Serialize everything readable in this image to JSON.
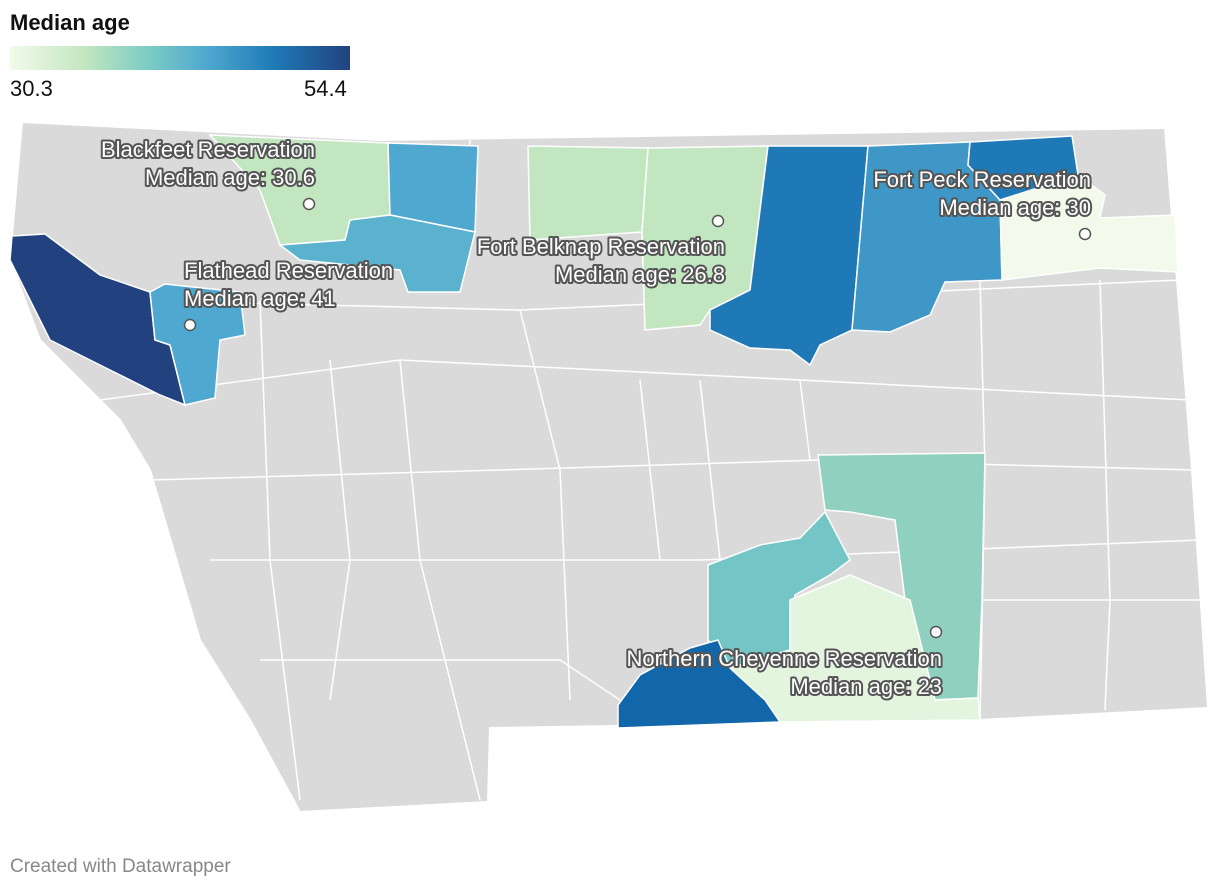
{
  "legend": {
    "title": "Median age",
    "min": "30.3",
    "max": "54.4",
    "colors": [
      "#f3faeb",
      "#c2e6c0",
      "#7ecdc4",
      "#4ea8cf",
      "#1f79b6",
      "#22427f"
    ]
  },
  "reservations": [
    {
      "name": "Blackfeet Reservation",
      "median_label": "Median age: 30.6"
    },
    {
      "name": "Flathead Reservation",
      "median_label": "Median age: 41"
    },
    {
      "name": "Fort Belknap Reservation",
      "median_label": "Median age: 26.8"
    },
    {
      "name": "Fort Peck Reservation",
      "median_label": "Median age: 30"
    },
    {
      "name": "Northern Cheyenne Reservation",
      "median_label": "Median age: 23"
    }
  ],
  "credit": "Created with Datawrapper"
}
